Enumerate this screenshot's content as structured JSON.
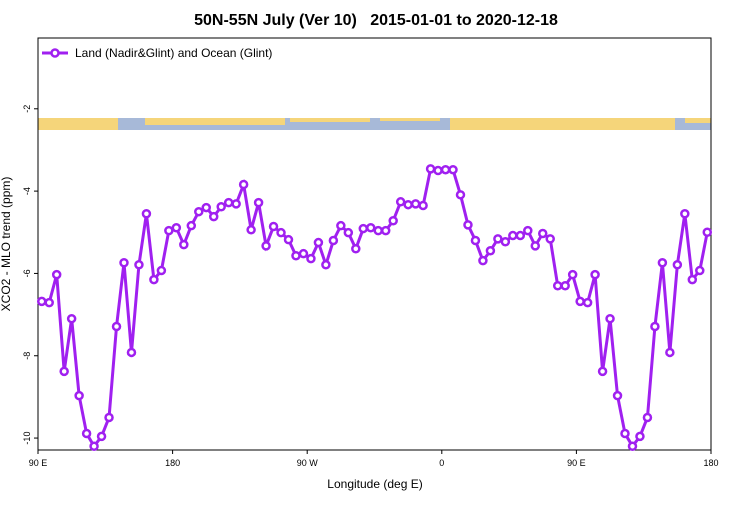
{
  "chart_data": {
    "type": "line",
    "title": "50N-55N July (Ver 10)   2015-01-01 to 2020-12-18",
    "x_label": "Longitude (deg E)",
    "y_label": "XCO2 - MLO trend (ppm)",
    "xlim": [
      90,
      540
    ],
    "ylim": [
      -10.29,
      -0.28
    ],
    "xticks": [
      {
        "value": 90,
        "label": "90 E"
      },
      180,
      {
        "value": 270,
        "label": "90 W"
      },
      {
        "value": 360,
        "label": "0"
      },
      {
        "value": 450,
        "label": "90 E"
      },
      {
        "value": 540,
        "label": "180"
      }
    ],
    "yticks": [
      -2,
      -4,
      -6,
      -8,
      -10
    ],
    "legend": "top-left",
    "x": [
      92.5,
      97.5,
      102.5,
      107.5,
      112.5,
      117.5,
      122.5,
      127.5,
      132.5,
      137.5,
      142.5,
      147.5,
      152.5,
      157.5,
      162.5,
      167.5,
      172.5,
      177.5,
      182.5,
      187.5,
      192.5,
      197.5,
      202.5,
      207.5,
      212.5,
      217.5,
      222.5,
      227.5,
      232.5,
      237.5,
      242.5,
      247.5,
      252.5,
      257.5,
      262.5,
      267.5,
      272.5,
      277.5,
      282.5,
      287.5,
      292.5,
      297.5,
      302.5,
      307.5,
      312.5,
      317.5,
      322.5,
      327.5,
      332.5,
      337.5,
      342.5,
      347.5,
      352.5,
      357.5,
      362.5,
      367.5,
      372.5,
      377.5,
      382.5,
      387.5,
      392.5,
      397.5,
      402.5,
      407.5,
      412.5,
      417.5,
      422.5,
      427.5,
      432.5,
      437.5,
      442.5,
      447.5,
      452.5,
      457.5,
      462.5,
      467.5,
      472.5,
      477.5,
      482.5,
      487.5,
      492.5,
      497.5,
      502.5,
      507.5,
      512.5,
      517.5,
      522.5,
      527.5,
      532.5,
      537.5
    ],
    "series": [
      {
        "name": "Land (Nadir&Glint) and Ocean (Glint)",
        "color": "#a020f0",
        "values": [
          -6.68,
          -6.71,
          -6.03,
          -8.38,
          -7.1,
          -8.97,
          -9.89,
          -10.2,
          -9.96,
          -9.5,
          -7.29,
          -5.74,
          -7.92,
          -5.79,
          -4.55,
          -6.15,
          -5.93,
          -4.96,
          -4.89,
          -5.3,
          -4.84,
          -4.5,
          -4.4,
          -4.62,
          -4.38,
          -4.28,
          -4.31,
          -3.84,
          -4.94,
          -4.28,
          -5.33,
          -4.86,
          -5.01,
          -5.18,
          -5.57,
          -5.52,
          -5.64,
          -5.25,
          -5.79,
          -5.2,
          -4.84,
          -5.01,
          -5.4,
          -4.91,
          -4.89,
          -4.96,
          -4.96,
          -4.72,
          -4.26,
          -4.33,
          -4.31,
          -4.35,
          -3.46,
          -3.5,
          -3.48,
          -3.48,
          -4.09,
          -4.82,
          -5.2,
          -5.69,
          -5.45,
          -5.16,
          -5.23,
          -5.08,
          -5.08,
          -4.96,
          -5.33,
          -5.03,
          -5.16,
          -6.3,
          -6.3,
          -6.03,
          -6.68,
          -6.71,
          -6.03,
          -8.38,
          -7.1,
          -8.97,
          -9.89,
          -10.2,
          -9.96,
          -9.5,
          -7.29,
          -5.74,
          -7.92,
          -5.79,
          -4.55,
          -6.15,
          -5.93,
          -5.0
        ]
      }
    ]
  }
}
